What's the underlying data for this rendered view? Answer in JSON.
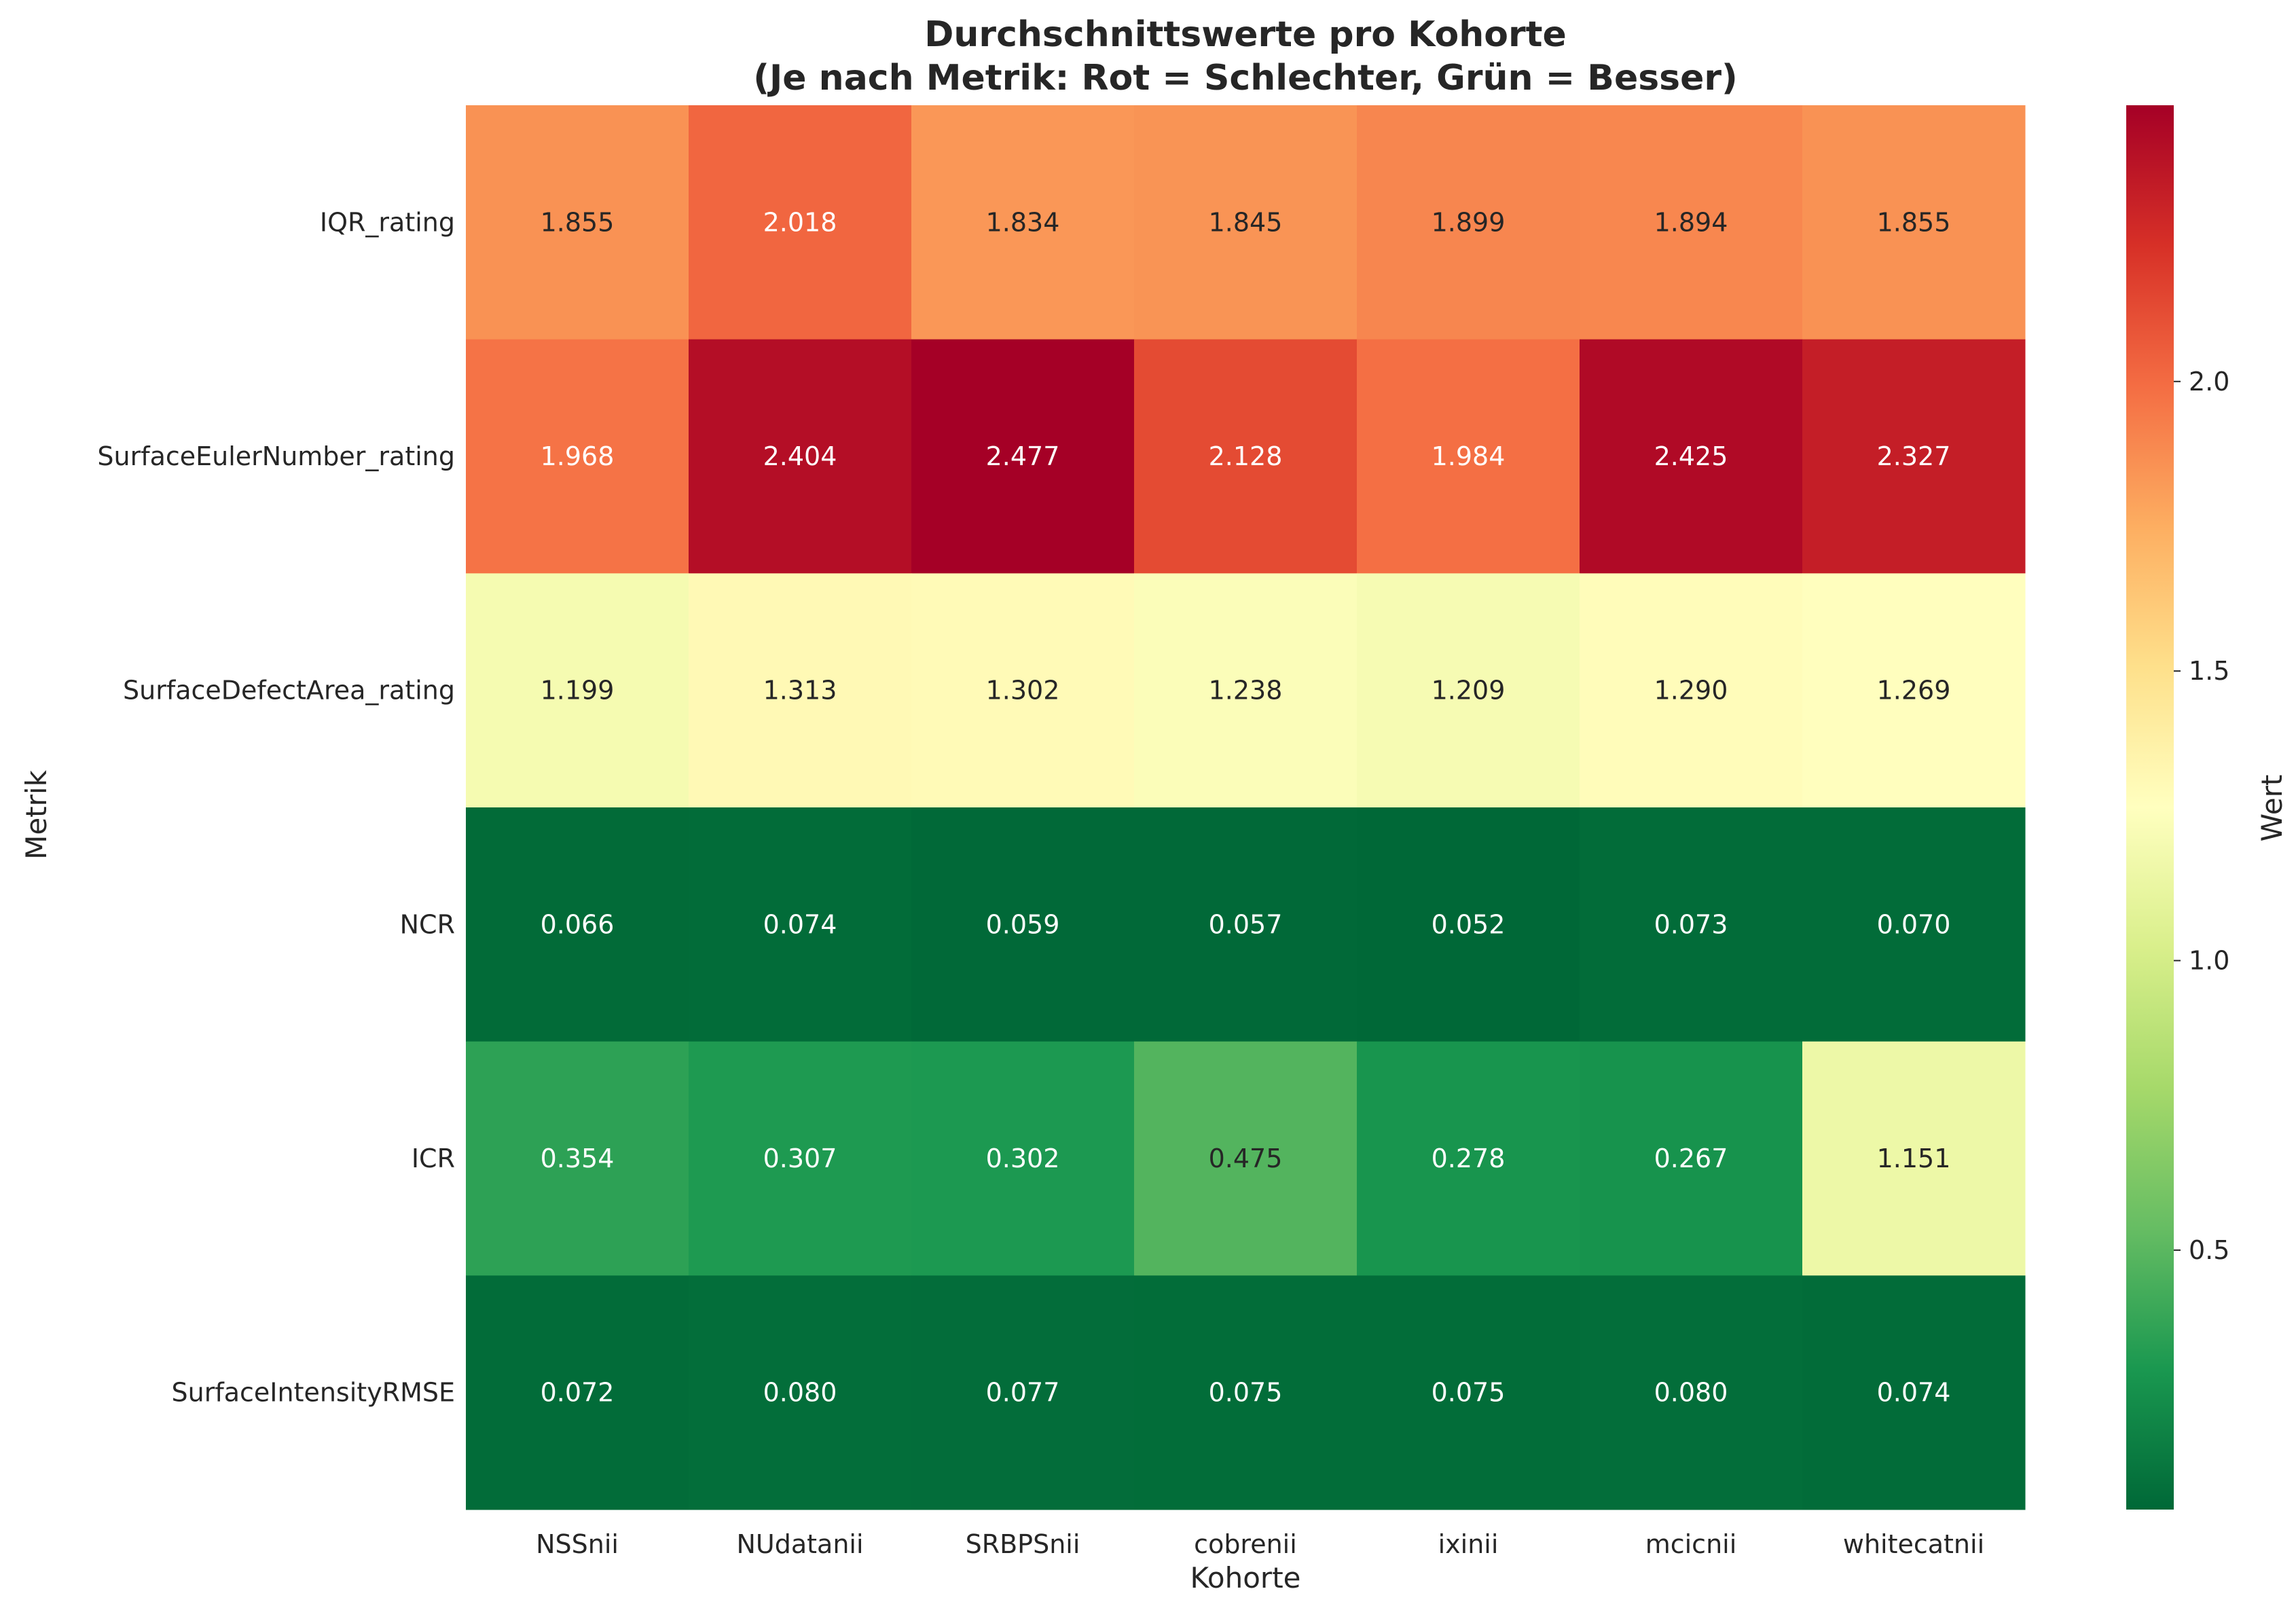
{
  "chart_data": {
    "type": "heatmap",
    "title_line1": "Durchschnittswerte pro Kohorte",
    "title_line2": "(Je nach Metrik: Rot = Schlechter, Grün = Besser)",
    "xlabel": "Kohorte",
    "ylabel": "Metrik",
    "colorbar_label": "Wert",
    "colormap": "RdYlGn_r",
    "vmin": 0.052,
    "vmax": 2.477,
    "colorbar_ticks": [
      "0.5",
      "1.0",
      "1.5",
      "2.0"
    ],
    "colorbar_tick_values": [
      0.5,
      1.0,
      1.5,
      2.0
    ],
    "columns": [
      "NSSnii",
      "NUdatanii",
      "SRBPSnii",
      "cobrenii",
      "ixinii",
      "mcicnii",
      "whitecatnii"
    ],
    "rows": [
      "IQR_rating",
      "SurfaceEulerNumber_rating",
      "SurfaceDefectArea_rating",
      "NCR",
      "ICR",
      "SurfaceIntensityRMSE"
    ],
    "values": [
      [
        1.855,
        2.018,
        1.834,
        1.845,
        1.899,
        1.894,
        1.855
      ],
      [
        1.968,
        2.404,
        2.477,
        2.128,
        1.984,
        2.425,
        2.327
      ],
      [
        1.199,
        1.313,
        1.302,
        1.238,
        1.209,
        1.29,
        1.269
      ],
      [
        0.066,
        0.074,
        0.059,
        0.057,
        0.052,
        0.073,
        0.07
      ],
      [
        0.354,
        0.307,
        0.302,
        0.475,
        0.278,
        0.267,
        1.151
      ],
      [
        0.072,
        0.08,
        0.077,
        0.075,
        0.075,
        0.08,
        0.074
      ]
    ],
    "labels": [
      [
        "1.855",
        "2.018",
        "1.834",
        "1.845",
        "1.899",
        "1.894",
        "1.855"
      ],
      [
        "1.968",
        "2.404",
        "2.477",
        "2.128",
        "1.984",
        "2.425",
        "2.327"
      ],
      [
        "1.199",
        "1.313",
        "1.302",
        "1.238",
        "1.209",
        "1.290",
        "1.269"
      ],
      [
        "0.066",
        "0.074",
        "0.059",
        "0.057",
        "0.052",
        "0.073",
        "0.070"
      ],
      [
        "0.354",
        "0.307",
        "0.302",
        "0.475",
        "0.278",
        "0.267",
        "1.151"
      ],
      [
        "0.072",
        "0.080",
        "0.077",
        "0.075",
        "0.075",
        "0.080",
        "0.074"
      ]
    ]
  }
}
